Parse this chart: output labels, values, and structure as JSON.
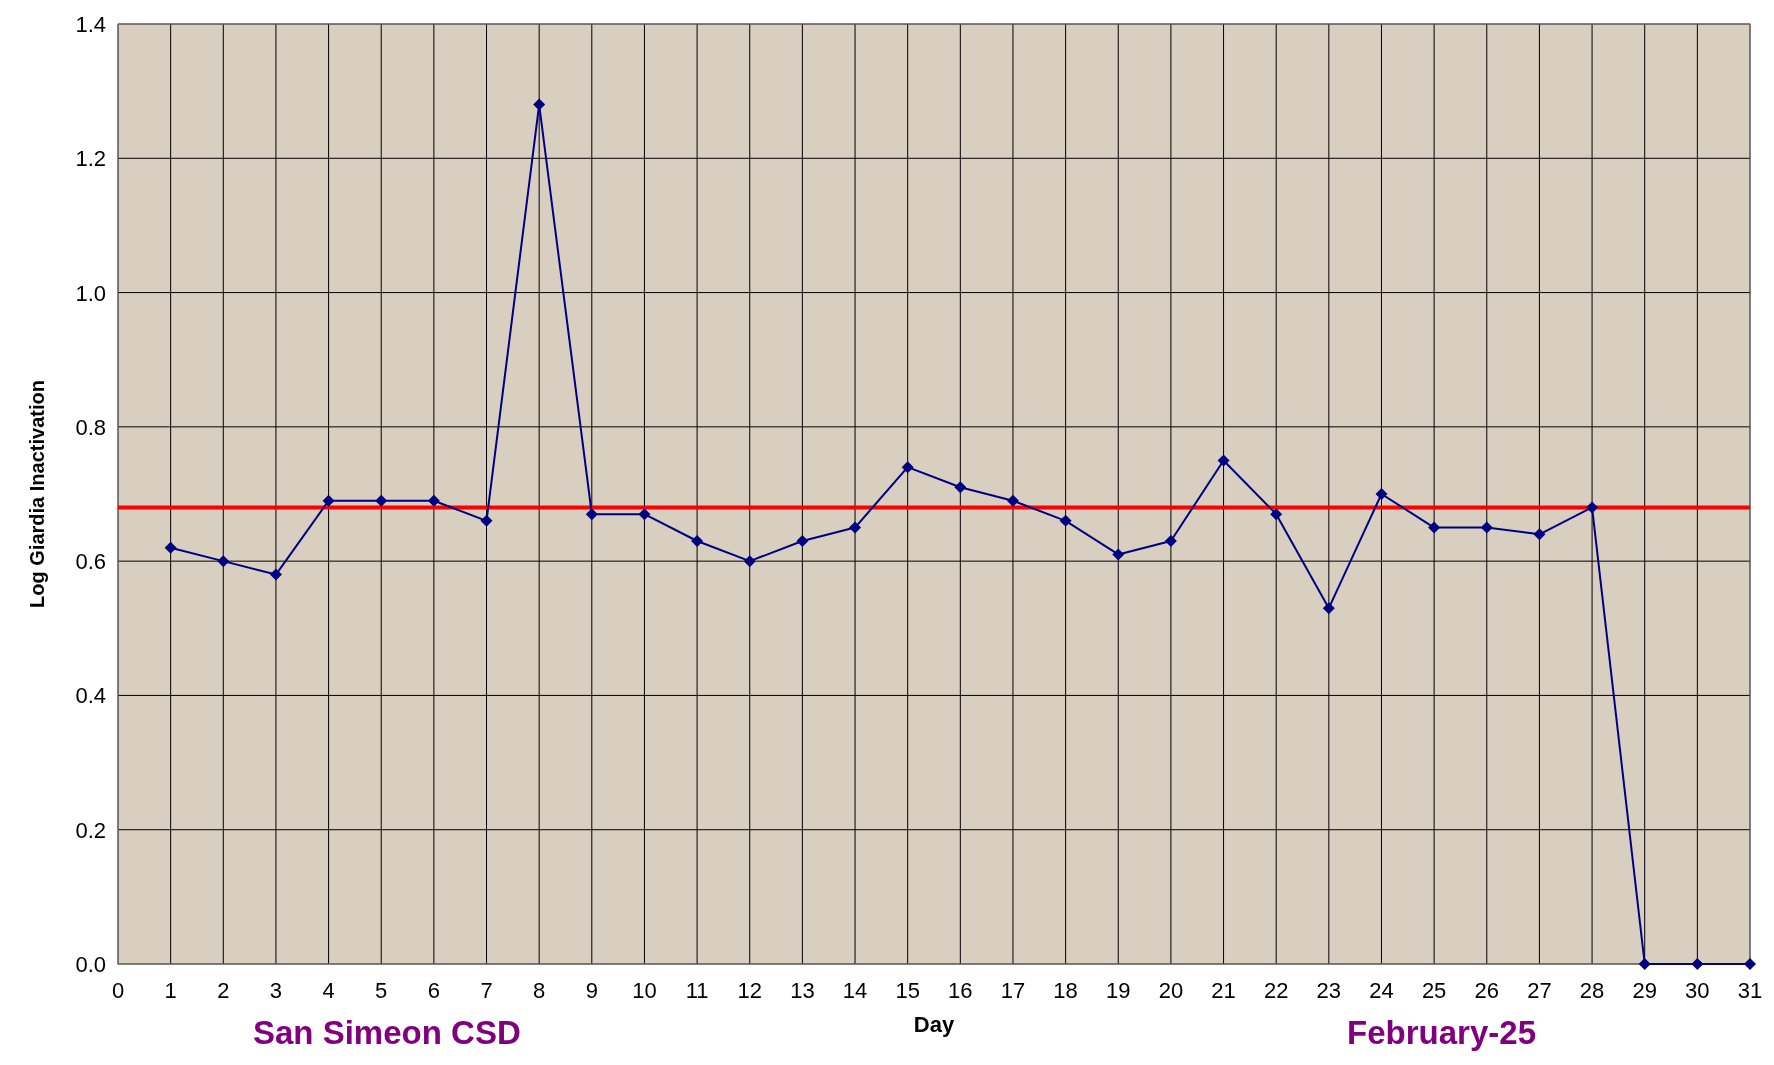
{
  "chart_data": {
    "type": "line",
    "xlabel": "Day",
    "ylabel": "Log Giardia Inactivation",
    "x": [
      1,
      2,
      3,
      4,
      5,
      6,
      7,
      8,
      9,
      10,
      11,
      12,
      13,
      14,
      15,
      16,
      17,
      18,
      19,
      20,
      21,
      22,
      23,
      24,
      25,
      26,
      27,
      28,
      29,
      30,
      31
    ],
    "series": [
      {
        "color": "#000080",
        "values": [
          0.62,
          0.6,
          0.58,
          0.69,
          0.69,
          0.69,
          0.66,
          1.28,
          0.67,
          0.67,
          0.63,
          0.6,
          0.63,
          0.65,
          0.74,
          0.71,
          0.69,
          0.66,
          0.61,
          0.63,
          0.75,
          0.67,
          0.53,
          0.7,
          0.65,
          0.65,
          0.64,
          0.68,
          0,
          0,
          0
        ]
      }
    ],
    "xlim": [
      0,
      31
    ],
    "xticks": [
      0,
      1,
      2,
      3,
      4,
      5,
      6,
      7,
      8,
      9,
      10,
      11,
      12,
      13,
      14,
      15,
      16,
      17,
      18,
      19,
      20,
      21,
      22,
      23,
      24,
      25,
      26,
      27,
      28,
      29,
      30,
      31
    ],
    "ylim": [
      0,
      1.4
    ],
    "yticks": [
      {
        "value": 0,
        "label": "0.0"
      },
      0.2,
      0.4,
      0.6,
      0.8,
      {
        "value": 1,
        "label": "1.0"
      },
      1.2,
      1.4
    ],
    "grid": true,
    "marker": "diamond",
    "line_style": "solid",
    "ref_lines": [
      {
        "axis": "y",
        "value": 0.68,
        "color": "#ff0000"
      }
    ],
    "annotations": [
      "San Simeon CSD",
      "February-25"
    ]
  }
}
